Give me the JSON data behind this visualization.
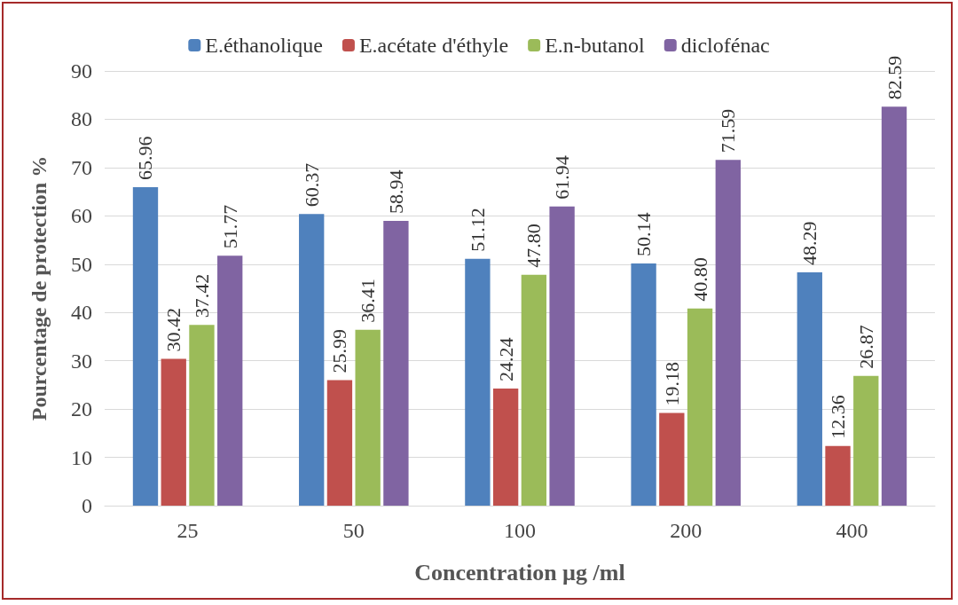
{
  "chart_data": {
    "type": "bar",
    "xlabel": "Concentration µg /ml",
    "ylabel": "Pourcentage de protection %",
    "categories": [
      "25",
      "50",
      "100",
      "200",
      "400"
    ],
    "series": [
      {
        "name": "E.éthanolique",
        "color": "#4f81bd",
        "values": [
          65.96,
          60.37,
          51.12,
          50.14,
          48.29
        ],
        "value_labels": [
          "65.96",
          "60.37",
          "51.12",
          "50.14",
          "48.29"
        ]
      },
      {
        "name": "E.acétate d'éthyle",
        "color": "#c0504d",
        "values": [
          30.42,
          25.99,
          24.24,
          19.18,
          12.36
        ],
        "value_labels": [
          "30.42",
          "25.99",
          "24.24",
          "19.18",
          "12.36"
        ]
      },
      {
        "name": "E.n-butanol",
        "color": "#9bbb59",
        "values": [
          37.42,
          36.41,
          47.8,
          40.8,
          26.87
        ],
        "value_labels": [
          "37.42",
          "36.41",
          "47.80",
          "40.80",
          "26.87"
        ]
      },
      {
        "name": "diclofénac",
        "color": "#8064a2",
        "values": [
          51.77,
          58.94,
          61.94,
          71.59,
          82.59
        ],
        "value_labels": [
          "51.77",
          "58.94",
          "61.94",
          "71.59",
          "82.59"
        ]
      }
    ],
    "ylim": [
      0,
      90
    ],
    "yticks": [
      0,
      10,
      20,
      30,
      40,
      50,
      60,
      70,
      80,
      90
    ],
    "grid": "y",
    "legend": "top"
  }
}
